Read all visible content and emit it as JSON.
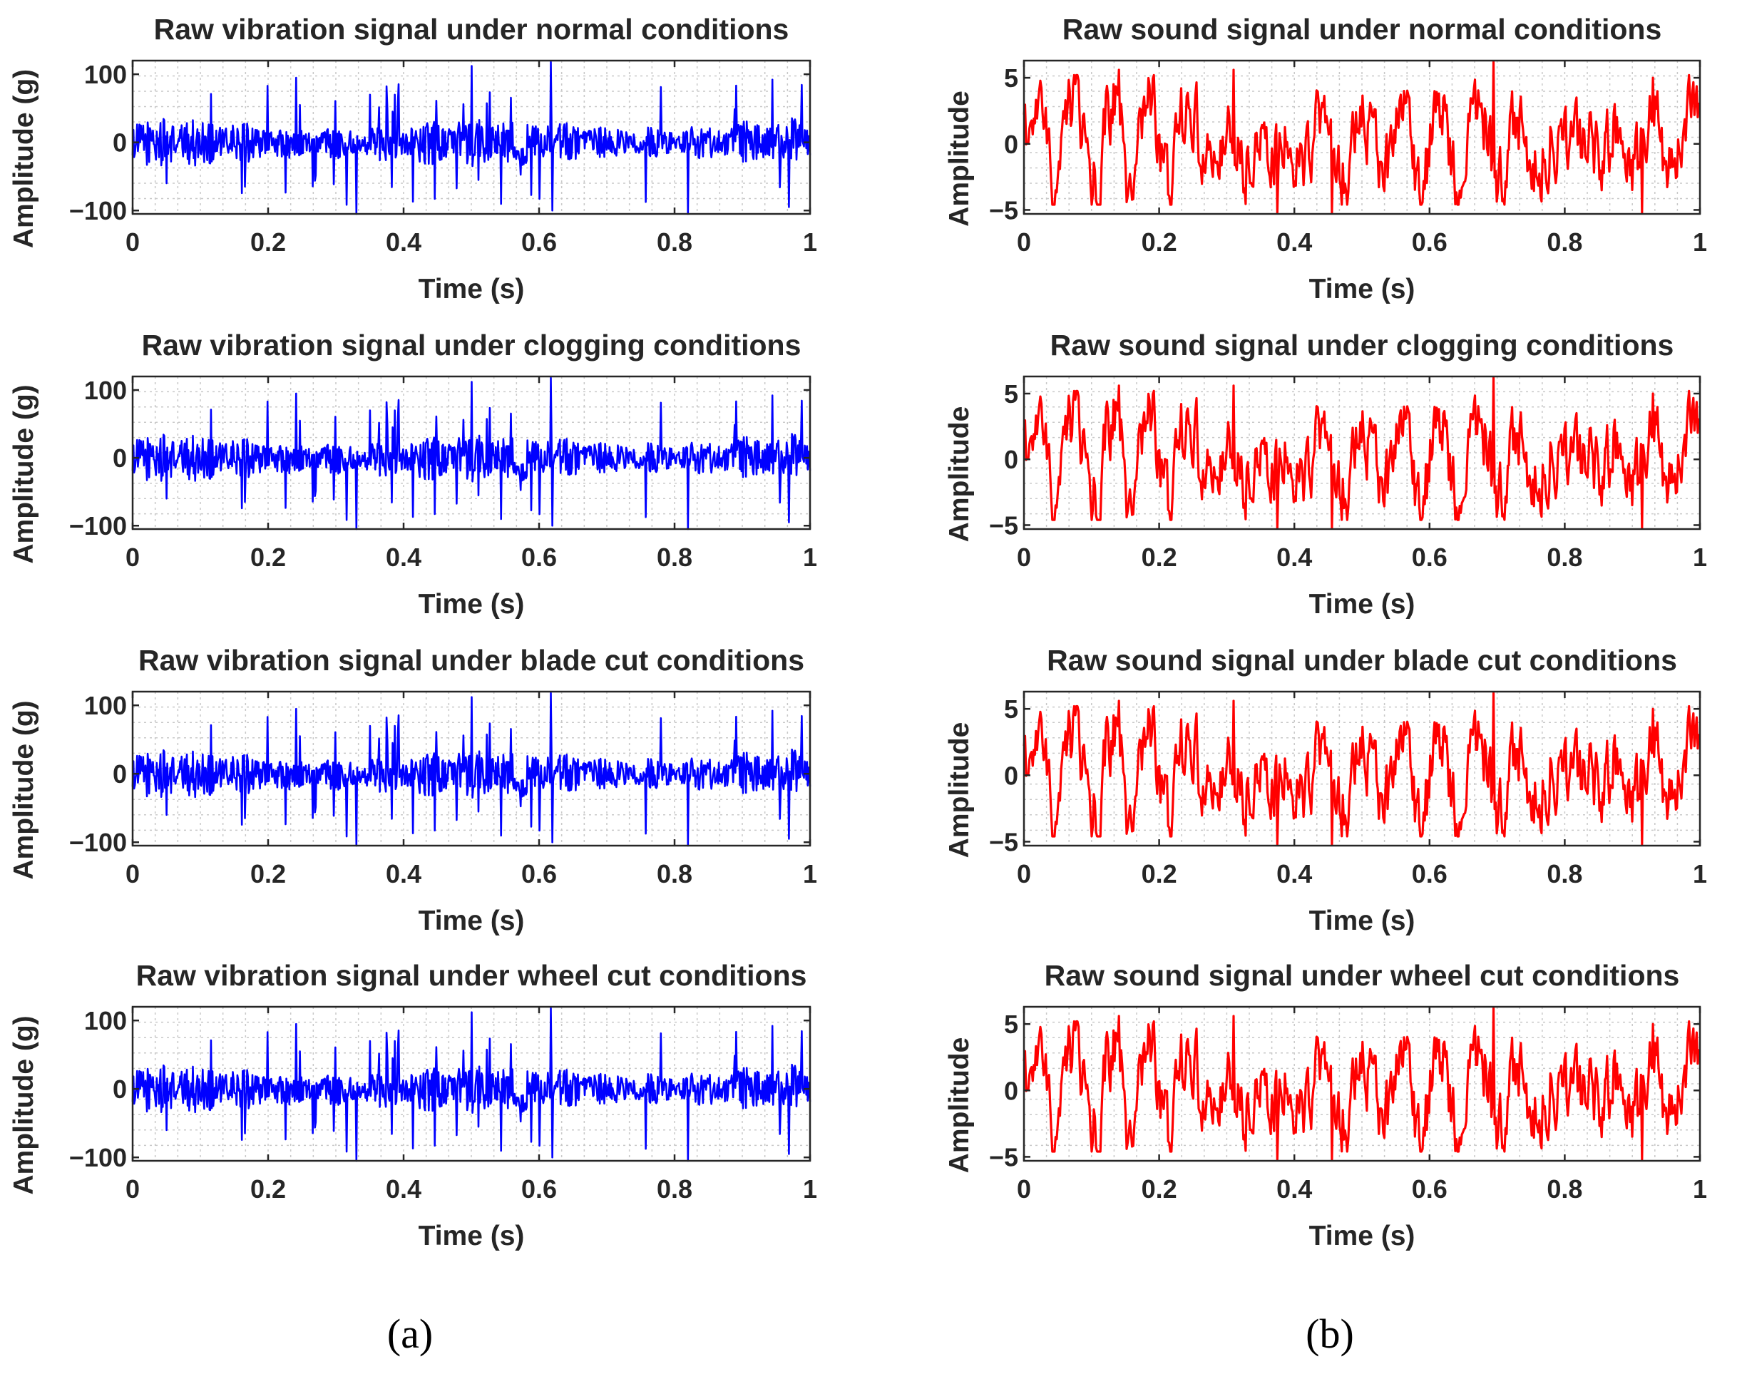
{
  "figure": {
    "captions": [
      "(a)",
      "(b)"
    ],
    "colors": {
      "vibration": "#0000ff",
      "sound": "#ff0000",
      "axis": "#262626",
      "grid": "#c8c8c8"
    }
  },
  "chart_data": [
    {
      "id": "vib-normal",
      "column": "a",
      "type": "line",
      "title": "Raw vibration signal under normal conditions",
      "xlabel": "Time (s)",
      "ylabel": "Amplitude (g)",
      "xlim": [
        0,
        1
      ],
      "ylim": [
        -105,
        120
      ],
      "xticks": [
        0,
        0.2,
        0.4,
        0.6,
        0.8,
        1
      ],
      "xtick_labels": [
        "0",
        "0.2",
        "0.4",
        "0.6",
        "0.8",
        "1"
      ],
      "yticks": [
        -100,
        0,
        100
      ],
      "ytick_labels": [
        "−100",
        "0",
        "100"
      ],
      "color": "#0000ff",
      "series": [
        {
          "name": "vibration",
          "signal": "dense vibration, envelope about ±100 g",
          "peak_max": 118,
          "peak_min": -105
        }
      ]
    },
    {
      "id": "vib-clogging",
      "column": "a",
      "type": "line",
      "title": "Raw vibration signal under clogging conditions",
      "xlabel": "Time (s)",
      "ylabel": "Amplitude (g)",
      "xlim": [
        0,
        1
      ],
      "ylim": [
        -105,
        120
      ],
      "xticks": [
        0,
        0.2,
        0.4,
        0.6,
        0.8,
        1
      ],
      "xtick_labels": [
        "0",
        "0.2",
        "0.4",
        "0.6",
        "0.8",
        "1"
      ],
      "yticks": [
        -100,
        0,
        100
      ],
      "ytick_labels": [
        "−100",
        "0",
        "100"
      ],
      "color": "#0000ff",
      "series": [
        {
          "name": "vibration",
          "signal": "dense vibration, envelope about ±100 g",
          "peak_max": 118,
          "peak_min": -105
        }
      ]
    },
    {
      "id": "vib-blade",
      "column": "a",
      "type": "line",
      "title": "Raw vibration signal under blade cut conditions",
      "xlabel": "Time (s)",
      "ylabel": "Amplitude (g)",
      "xlim": [
        0,
        1
      ],
      "ylim": [
        -105,
        120
      ],
      "xticks": [
        0,
        0.2,
        0.4,
        0.6,
        0.8,
        1
      ],
      "xtick_labels": [
        "0",
        "0.2",
        "0.4",
        "0.6",
        "0.8",
        "1"
      ],
      "yticks": [
        -100,
        0,
        100
      ],
      "ytick_labels": [
        "−100",
        "0",
        "100"
      ],
      "color": "#0000ff",
      "series": [
        {
          "name": "vibration",
          "signal": "dense vibration, envelope about ±100 g",
          "peak_max": 118,
          "peak_min": -105
        }
      ]
    },
    {
      "id": "vib-wheel",
      "column": "a",
      "type": "line",
      "title": "Raw vibration signal under wheel cut conditions",
      "xlabel": "Time (s)",
      "ylabel": "Amplitude (g)",
      "xlim": [
        0,
        1
      ],
      "ylim": [
        -105,
        120
      ],
      "xticks": [
        0,
        0.2,
        0.4,
        0.6,
        0.8,
        1
      ],
      "xtick_labels": [
        "0",
        "0.2",
        "0.4",
        "0.6",
        "0.8",
        "1"
      ],
      "yticks": [
        -100,
        0,
        100
      ],
      "ytick_labels": [
        "−100",
        "0",
        "100"
      ],
      "color": "#0000ff",
      "series": [
        {
          "name": "vibration",
          "signal": "dense vibration, envelope about ±100 g",
          "peak_max": 118,
          "peak_min": -105
        }
      ]
    },
    {
      "id": "snd-normal",
      "column": "b",
      "type": "line",
      "title": "Raw sound signal under normal conditions",
      "xlabel": "Time (s)",
      "ylabel": "Amplitude",
      "xlim": [
        0,
        1
      ],
      "ylim": [
        -5.3,
        6.3
      ],
      "xticks": [
        0,
        0.2,
        0.4,
        0.6,
        0.8,
        1
      ],
      "xtick_labels": [
        "0",
        "0.2",
        "0.4",
        "0.6",
        "0.8",
        "1"
      ],
      "yticks": [
        -5,
        0,
        5
      ],
      "ytick_labels": [
        "−5",
        "0",
        "5"
      ],
      "color": "#ff0000",
      "series": [
        {
          "name": "sound",
          "signal": "sound waveform, range about −5 to 6",
          "peak_max": 6.2,
          "peak_min": -5.2
        }
      ]
    },
    {
      "id": "snd-clogging",
      "column": "b",
      "type": "line",
      "title": "Raw sound signal under clogging conditions",
      "xlabel": "Time (s)",
      "ylabel": "Amplitude",
      "xlim": [
        0,
        1
      ],
      "ylim": [
        -5.3,
        6.3
      ],
      "xticks": [
        0,
        0.2,
        0.4,
        0.6,
        0.8,
        1
      ],
      "xtick_labels": [
        "0",
        "0.2",
        "0.4",
        "0.6",
        "0.8",
        "1"
      ],
      "yticks": [
        -5,
        0,
        5
      ],
      "ytick_labels": [
        "−5",
        "0",
        "5"
      ],
      "color": "#ff0000",
      "series": [
        {
          "name": "sound",
          "signal": "sound waveform, range about −5 to 6",
          "peak_max": 6.2,
          "peak_min": -5.2
        }
      ]
    },
    {
      "id": "snd-blade",
      "column": "b",
      "type": "line",
      "title": "Raw sound signal under blade cut conditions",
      "xlabel": "Time (s)",
      "ylabel": "Amplitude",
      "xlim": [
        0,
        1
      ],
      "ylim": [
        -5.3,
        6.3
      ],
      "xticks": [
        0,
        0.2,
        0.4,
        0.6,
        0.8,
        1
      ],
      "xtick_labels": [
        "0",
        "0.2",
        "0.4",
        "0.6",
        "0.8",
        "1"
      ],
      "yticks": [
        -5,
        0,
        5
      ],
      "ytick_labels": [
        "−5",
        "0",
        "5"
      ],
      "color": "#ff0000",
      "series": [
        {
          "name": "sound",
          "signal": "sound waveform, range about −5 to 6",
          "peak_max": 6.2,
          "peak_min": -5.2
        }
      ]
    },
    {
      "id": "snd-wheel",
      "column": "b",
      "type": "line",
      "title": "Raw sound signal under wheel cut conditions",
      "xlabel": "Time (s)",
      "ylabel": "Amplitude",
      "xlim": [
        0,
        1
      ],
      "ylim": [
        -5.3,
        6.3
      ],
      "xticks": [
        0,
        0.2,
        0.4,
        0.6,
        0.8,
        1
      ],
      "xtick_labels": [
        "0",
        "0.2",
        "0.4",
        "0.6",
        "0.8",
        "1"
      ],
      "yticks": [
        -5,
        0,
        5
      ],
      "ytick_labels": [
        "−5",
        "0",
        "5"
      ],
      "color": "#ff0000",
      "series": [
        {
          "name": "sound",
          "signal": "sound waveform, range about −5 to 6",
          "peak_max": 6.2,
          "peak_min": -5.2
        }
      ]
    }
  ]
}
